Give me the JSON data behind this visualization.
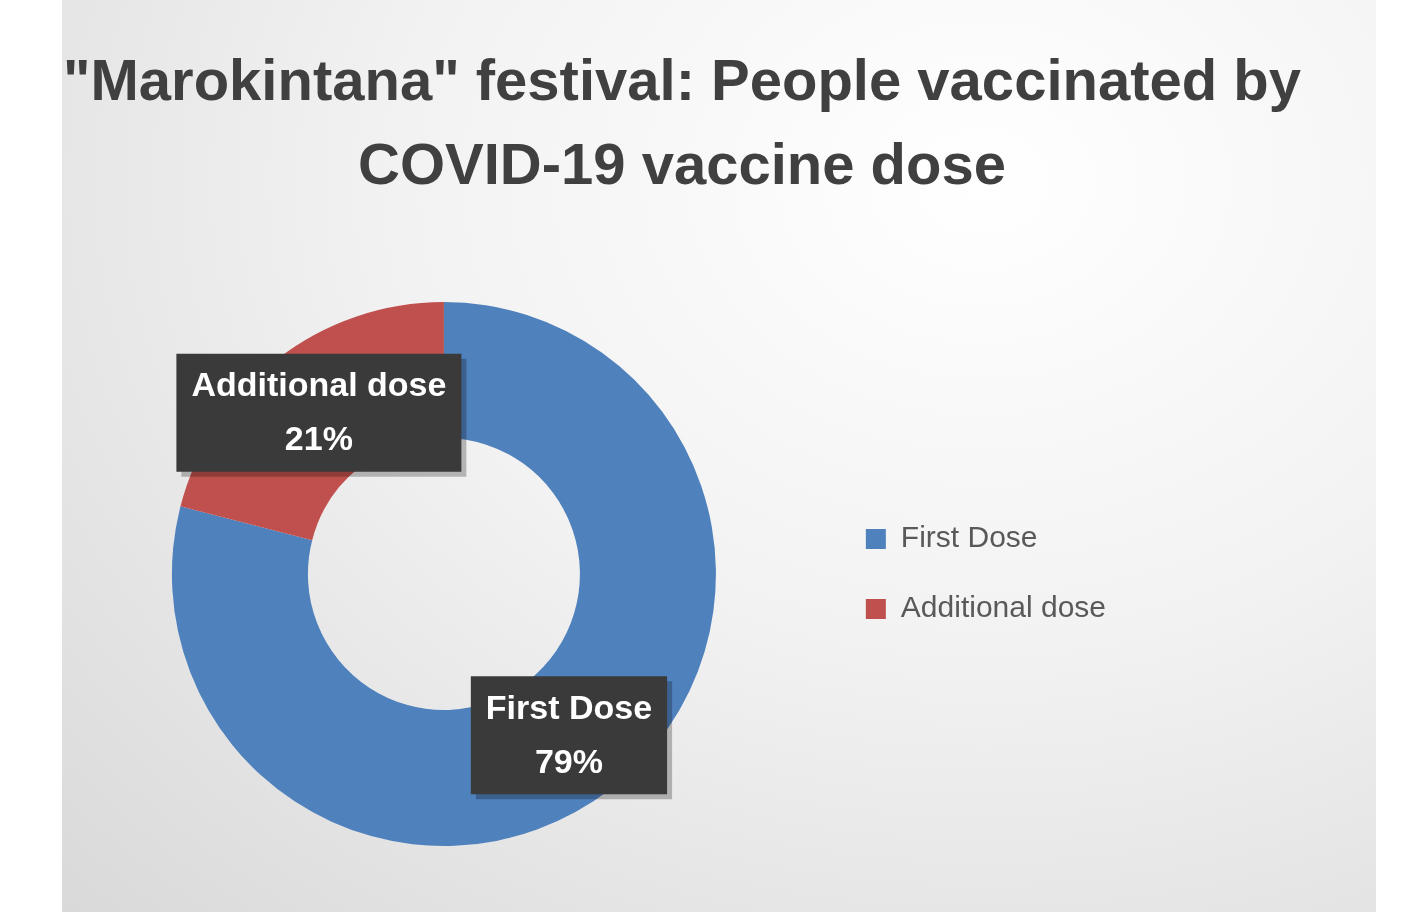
{
  "chart_data": {
    "type": "donut",
    "title": "\"Marokintana\" festival: People vaccinated by COVID-19 vaccine dose",
    "categories": [
      "First Dose",
      "Additional dose"
    ],
    "values": [
      79,
      21
    ],
    "colors": [
      "#4f81bd",
      "#c0504d"
    ],
    "value_labels": [
      "79%",
      "21%"
    ],
    "legend": "right"
  }
}
